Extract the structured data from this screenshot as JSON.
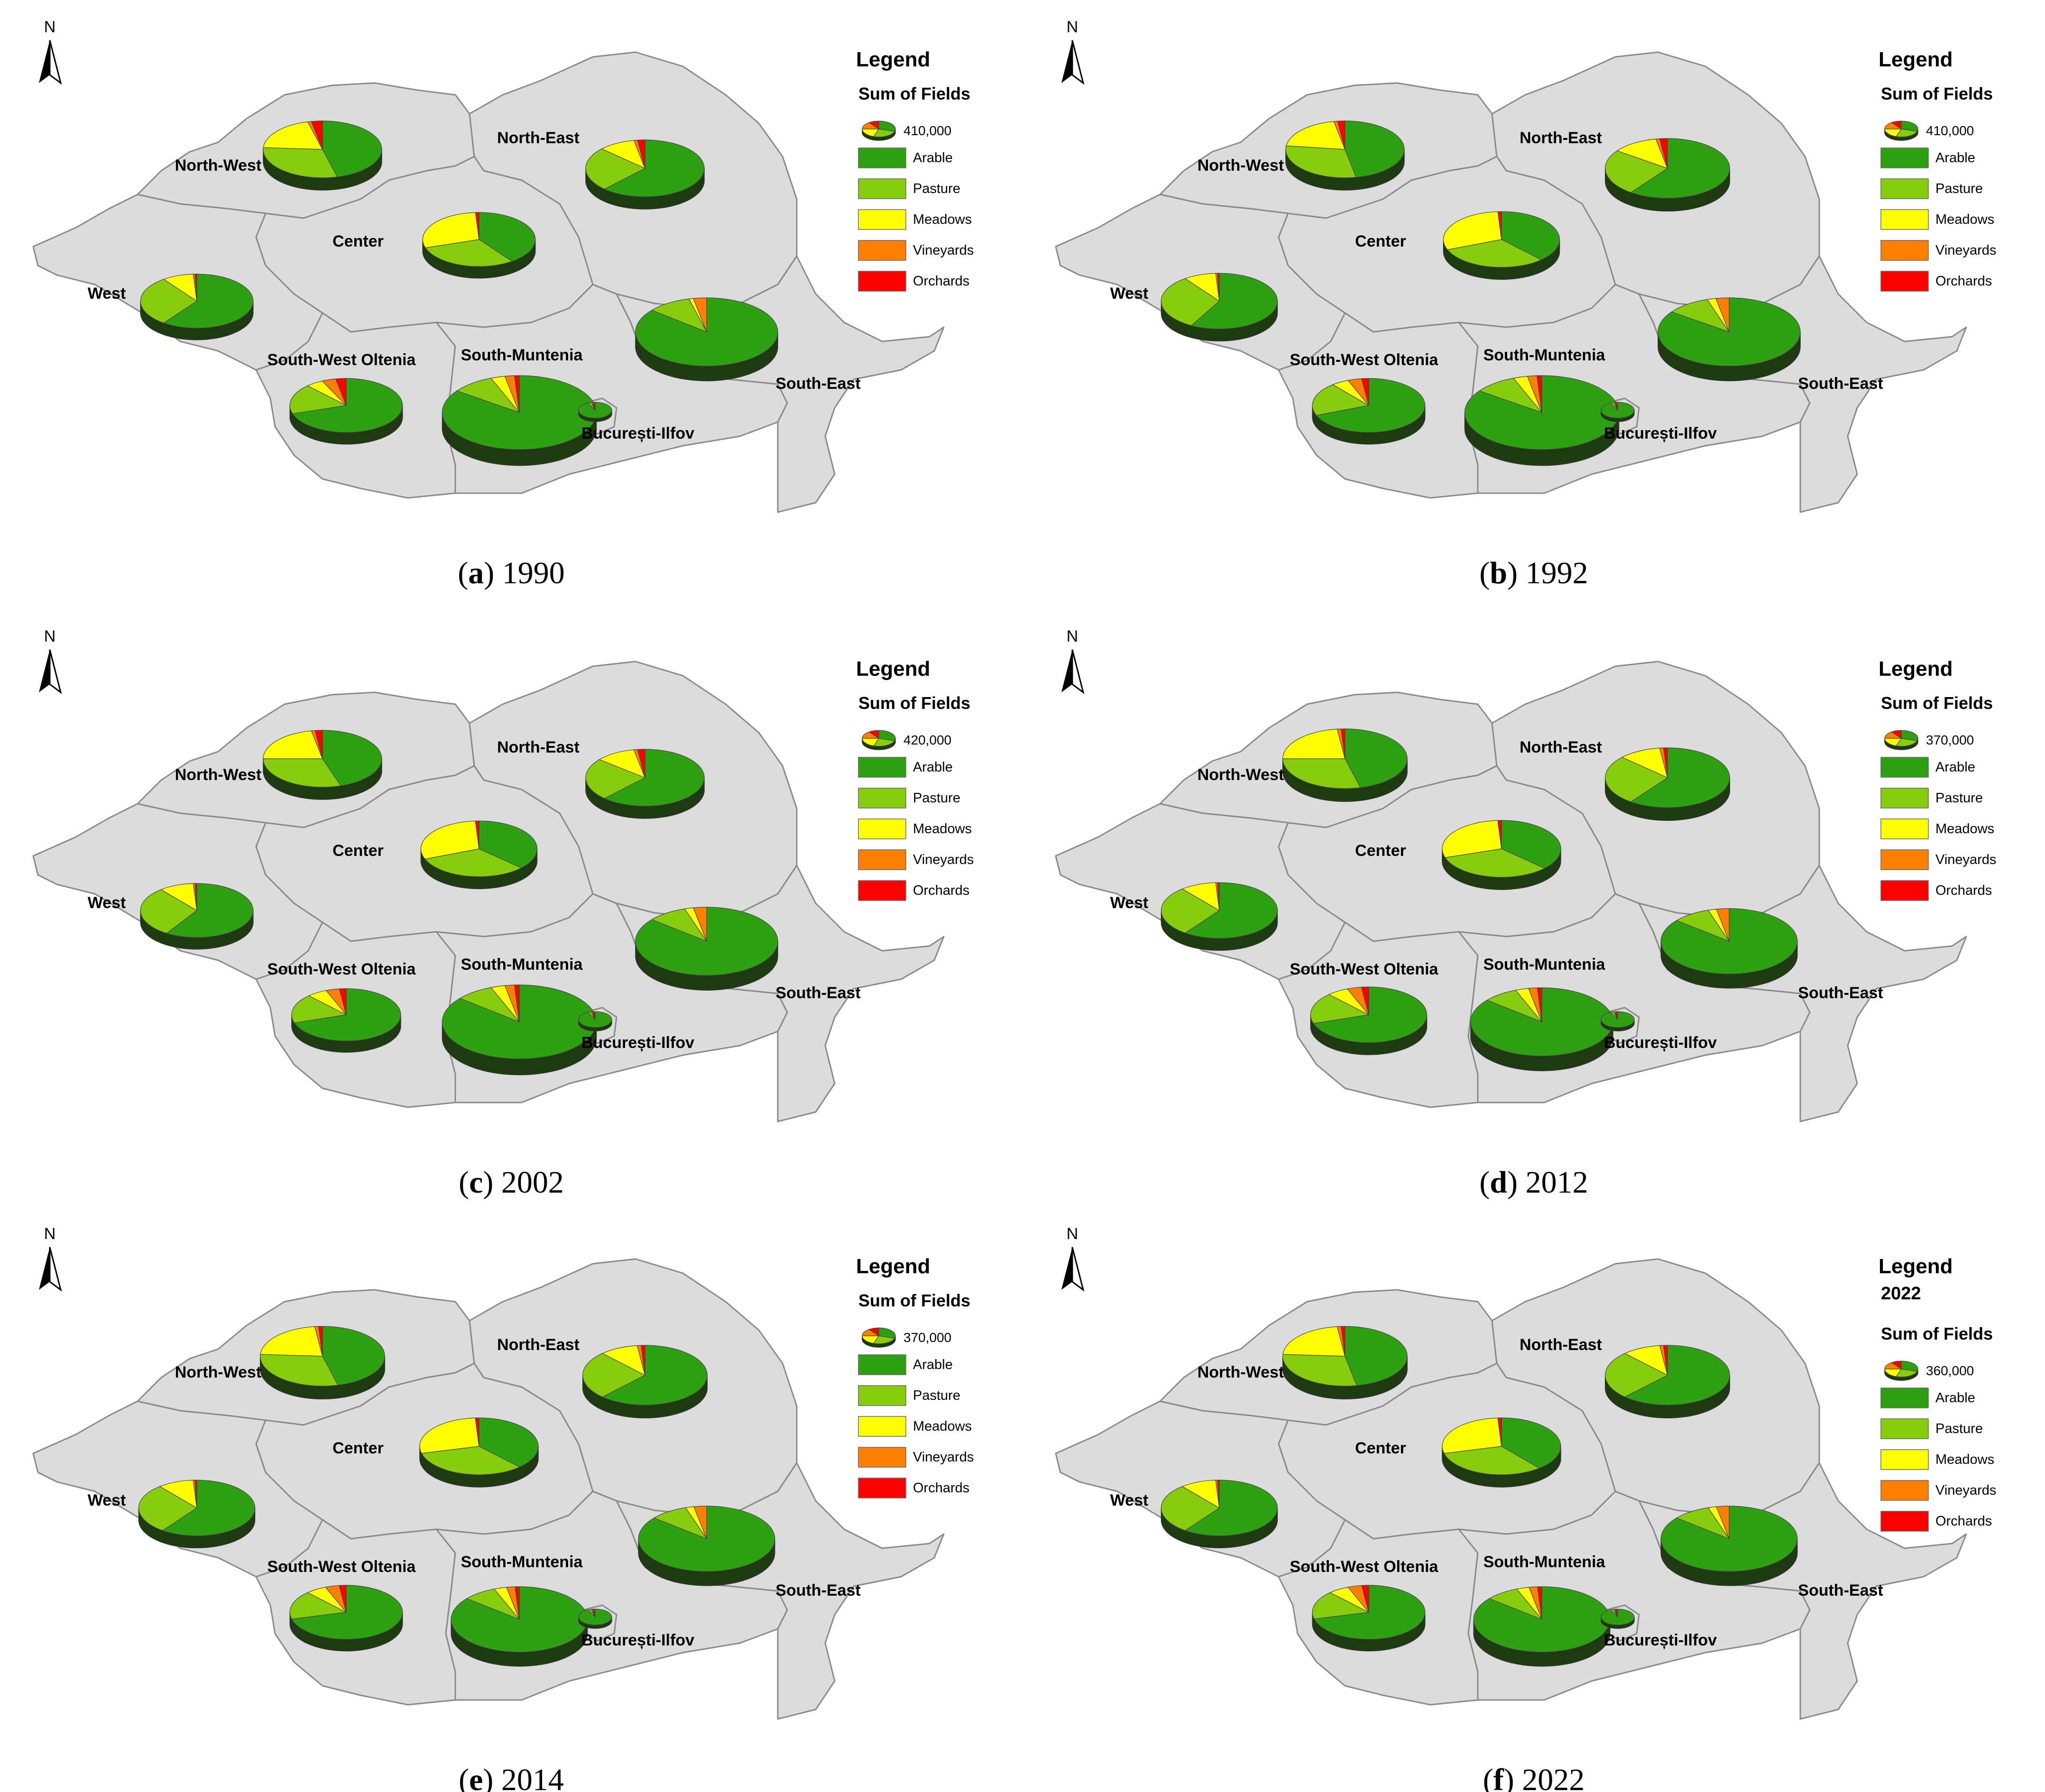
{
  "figure": {
    "regions": [
      "North-West",
      "North-East",
      "Center",
      "West",
      "South-West Oltenia",
      "South-Muntenia",
      "South-East",
      "București-Ilfov"
    ],
    "legend_items": [
      {
        "label": "Arable",
        "color": "#2ea012"
      },
      {
        "label": "Pasture",
        "color": "#88cc10"
      },
      {
        "label": "Meadows",
        "color": "#ffff00"
      },
      {
        "label": "Vineyards",
        "color": "#ff8000"
      },
      {
        "label": "Orchards",
        "color": "#ff0000"
      }
    ],
    "colors": {
      "region_fill": "#dcdcdc",
      "region_stroke": "#8a8a8a",
      "pie_side_dark": "#1d3a10"
    },
    "north_label": "N",
    "legend_title": "Legend",
    "sum_label": "Sum of Fields",
    "panels": [
      {
        "id": "a",
        "year": "1990",
        "year_heading": "",
        "sum_value": "410,000",
        "label_short": "",
        "pies": [
          {
            "region": "North-West",
            "scale": 1.0,
            "shares": [
              0.46,
              0.3,
              0.2,
              0.01,
              0.03
            ]
          },
          {
            "region": "North-East",
            "scale": 1.0,
            "shares": [
              0.62,
              0.25,
              0.1,
              0.01,
              0.02
            ]
          },
          {
            "region": "Center",
            "scale": 0.95,
            "shares": [
              0.4,
              0.3,
              0.29,
              0.0,
              0.01
            ]
          },
          {
            "region": "West",
            "scale": 0.95,
            "shares": [
              0.6,
              0.3,
              0.09,
              0.005,
              0.005
            ]
          },
          {
            "region": "South-West Oltenia",
            "scale": 0.95,
            "shares": [
              0.7,
              0.18,
              0.05,
              0.04,
              0.03
            ]
          },
          {
            "region": "South-Muntenia",
            "scale": 1.3,
            "shares": [
              0.85,
              0.09,
              0.03,
              0.02,
              0.01
            ]
          },
          {
            "region": "South-East",
            "scale": 1.2,
            "shares": [
              0.86,
              0.1,
              0.01,
              0.03,
              0.0
            ]
          },
          {
            "region": "București-Ilfov",
            "scale": 0.28,
            "shares": [
              0.93,
              0.03,
              0.01,
              0.01,
              0.02
            ]
          }
        ]
      },
      {
        "id": "b",
        "year": "1992",
        "year_heading": "",
        "sum_value": "410,000",
        "label_short": "",
        "pies": [
          {
            "region": "North-West",
            "scale": 1.0,
            "shares": [
              0.47,
              0.3,
              0.2,
              0.01,
              0.02
            ]
          },
          {
            "region": "North-East",
            "scale": 1.05,
            "shares": [
              0.6,
              0.25,
              0.12,
              0.01,
              0.02
            ]
          },
          {
            "region": "Center",
            "scale": 0.98,
            "shares": [
              0.38,
              0.31,
              0.3,
              0.0,
              0.01
            ]
          },
          {
            "region": "West",
            "scale": 0.98,
            "shares": [
              0.58,
              0.32,
              0.09,
              0.005,
              0.005
            ]
          },
          {
            "region": "South-West Oltenia",
            "scale": 0.95,
            "shares": [
              0.69,
              0.2,
              0.05,
              0.04,
              0.02
            ]
          },
          {
            "region": "South-Muntenia",
            "scale": 1.3,
            "shares": [
              0.85,
              0.09,
              0.03,
              0.02,
              0.01
            ]
          },
          {
            "region": "South-East",
            "scale": 1.2,
            "shares": [
              0.85,
              0.1,
              0.02,
              0.03,
              0.0
            ]
          },
          {
            "region": "București-Ilfov",
            "scale": 0.28,
            "shares": [
              0.93,
              0.03,
              0.01,
              0.01,
              0.02
            ]
          }
        ]
      },
      {
        "id": "c",
        "year": "2002",
        "year_heading": "",
        "sum_value": "420,000",
        "label_short": "",
        "pies": [
          {
            "region": "North-West",
            "scale": 1.0,
            "shares": [
              0.45,
              0.3,
              0.22,
              0.01,
              0.02
            ]
          },
          {
            "region": "North-East",
            "scale": 1.0,
            "shares": [
              0.62,
              0.24,
              0.11,
              0.01,
              0.02
            ]
          },
          {
            "region": "Center",
            "scale": 0.98,
            "shares": [
              0.37,
              0.32,
              0.3,
              0.0,
              0.01
            ]
          },
          {
            "region": "West",
            "scale": 0.95,
            "shares": [
              0.59,
              0.3,
              0.1,
              0.005,
              0.005
            ]
          },
          {
            "region": "South-West Oltenia",
            "scale": 0.92,
            "shares": [
              0.7,
              0.18,
              0.06,
              0.04,
              0.02
            ]
          },
          {
            "region": "South-Muntenia",
            "scale": 1.3,
            "shares": [
              0.86,
              0.08,
              0.03,
              0.02,
              0.01
            ]
          },
          {
            "region": "South-East",
            "scale": 1.2,
            "shares": [
              0.86,
              0.09,
              0.02,
              0.03,
              0.0
            ]
          },
          {
            "region": "București-Ilfov",
            "scale": 0.28,
            "shares": [
              0.93,
              0.03,
              0.01,
              0.01,
              0.02
            ]
          }
        ]
      },
      {
        "id": "d",
        "year": "2012",
        "year_heading": "",
        "sum_value": "370,000",
        "label_short": "",
        "pies": [
          {
            "region": "North-West",
            "scale": 1.05,
            "shares": [
              0.46,
              0.29,
              0.23,
              0.01,
              0.01
            ]
          },
          {
            "region": "North-East",
            "scale": 1.05,
            "shares": [
              0.6,
              0.27,
              0.11,
              0.01,
              0.01
            ]
          },
          {
            "region": "Center",
            "scale": 1.0,
            "shares": [
              0.37,
              0.33,
              0.29,
              0.0,
              0.01
            ]
          },
          {
            "region": "West",
            "scale": 0.98,
            "shares": [
              0.6,
              0.29,
              0.1,
              0.005,
              0.005
            ]
          },
          {
            "region": "South-West Oltenia",
            "scale": 0.98,
            "shares": [
              0.7,
              0.18,
              0.06,
              0.04,
              0.02
            ]
          },
          {
            "region": "South-Muntenia",
            "scale": 1.2,
            "shares": [
              0.86,
              0.08,
              0.03,
              0.02,
              0.01
            ]
          },
          {
            "region": "South-East",
            "scale": 1.15,
            "shares": [
              0.86,
              0.09,
              0.02,
              0.03,
              0.0
            ]
          },
          {
            "region": "București-Ilfov",
            "scale": 0.28,
            "shares": [
              0.93,
              0.03,
              0.01,
              0.01,
              0.02
            ]
          }
        ]
      },
      {
        "id": "e",
        "year": "2014",
        "year_heading": "",
        "sum_value": "370,000",
        "label_short": "",
        "pies": [
          {
            "region": "North-West",
            "scale": 1.05,
            "shares": [
              0.46,
              0.3,
              0.22,
              0.01,
              0.01
            ]
          },
          {
            "region": "North-East",
            "scale": 1.05,
            "shares": [
              0.62,
              0.26,
              0.1,
              0.01,
              0.01
            ]
          },
          {
            "region": "Center",
            "scale": 1.0,
            "shares": [
              0.38,
              0.33,
              0.28,
              0.0,
              0.01
            ]
          },
          {
            "region": "West",
            "scale": 0.98,
            "shares": [
              0.6,
              0.29,
              0.1,
              0.005,
              0.005
            ]
          },
          {
            "region": "South-West Oltenia",
            "scale": 0.95,
            "shares": [
              0.71,
              0.17,
              0.06,
              0.04,
              0.02
            ]
          },
          {
            "region": "South-Muntenia",
            "scale": 1.15,
            "shares": [
              0.86,
              0.08,
              0.03,
              0.02,
              0.01
            ]
          },
          {
            "region": "South-East",
            "scale": 1.15,
            "shares": [
              0.86,
              0.09,
              0.02,
              0.03,
              0.0
            ]
          },
          {
            "region": "București-Ilfov",
            "scale": 0.28,
            "shares": [
              0.93,
              0.03,
              0.01,
              0.01,
              0.02
            ]
          }
        ]
      },
      {
        "id": "f",
        "year": "2022",
        "year_heading": "2022",
        "sum_value": "360,000",
        "label_short": "",
        "pies": [
          {
            "region": "North-West",
            "scale": 1.05,
            "shares": [
              0.47,
              0.29,
              0.22,
              0.01,
              0.01
            ]
          },
          {
            "region": "North-East",
            "scale": 1.05,
            "shares": [
              0.62,
              0.26,
              0.1,
              0.01,
              0.01
            ]
          },
          {
            "region": "Center",
            "scale": 1.0,
            "shares": [
              0.39,
              0.32,
              0.28,
              0.0,
              0.01
            ]
          },
          {
            "region": "West",
            "scale": 0.98,
            "shares": [
              0.6,
              0.29,
              0.1,
              0.005,
              0.005
            ]
          },
          {
            "region": "South-West Oltenia",
            "scale": 0.95,
            "shares": [
              0.71,
              0.17,
              0.06,
              0.04,
              0.02
            ]
          },
          {
            "region": "South-Muntenia",
            "scale": 1.15,
            "shares": [
              0.86,
              0.08,
              0.03,
              0.02,
              0.01
            ]
          },
          {
            "region": "South-East",
            "scale": 1.15,
            "shares": [
              0.86,
              0.09,
              0.02,
              0.03,
              0.0
            ]
          },
          {
            "region": "București-Ilfov",
            "scale": 0.28,
            "shares": [
              0.93,
              0.03,
              0.01,
              0.01,
              0.02
            ]
          }
        ]
      }
    ]
  }
}
